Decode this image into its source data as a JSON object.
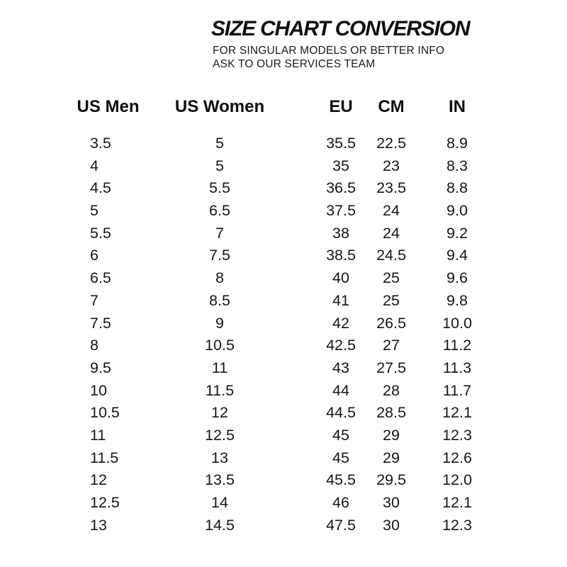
{
  "page": {
    "background_color": "#ffffff",
    "text_color": "#141414"
  },
  "header": {
    "title": "SIZE CHART CONVERSION",
    "subtitle_line1": "FOR SINGULAR MODELS OR BETTER INFO",
    "subtitle_line2": "ASK TO OUR SERVICES TEAM"
  },
  "table": {
    "headers": [
      "US Men",
      "US Women",
      "EU",
      "CM",
      "IN"
    ],
    "rows": [
      [
        "3.5",
        "5",
        "35.5",
        "22.5",
        "8.9"
      ],
      [
        "4",
        "5",
        "35",
        "23",
        "8.3"
      ],
      [
        "4.5",
        "5.5",
        "36.5",
        "23.5",
        "8.8"
      ],
      [
        "5",
        "6.5",
        "37.5",
        "24",
        "9.0"
      ],
      [
        "5.5",
        "7",
        "38",
        "24",
        "9.2"
      ],
      [
        "6",
        "7.5",
        "38.5",
        "24.5",
        "9.4"
      ],
      [
        "6.5",
        "8",
        "40",
        "25",
        "9.6"
      ],
      [
        "7",
        "8.5",
        "41",
        "25",
        "9.8"
      ],
      [
        "7.5",
        "9",
        "42",
        "26.5",
        "10.0"
      ],
      [
        "8",
        "10.5",
        "42.5",
        "27",
        "11.2"
      ],
      [
        "9.5",
        "11",
        "43",
        "27.5",
        "11.3"
      ],
      [
        "10",
        "11.5",
        "44",
        "28",
        "11.7"
      ],
      [
        "10.5",
        "12",
        "44.5",
        "28.5",
        "12.1"
      ],
      [
        "11",
        "12.5",
        "45",
        "29",
        "12.3"
      ],
      [
        "11.5",
        "13",
        "45",
        "29",
        "12.6"
      ],
      [
        "12",
        "13.5",
        "45.5",
        "29.5",
        "12.0"
      ],
      [
        "12.5",
        "14",
        "46",
        "30",
        "12.1"
      ],
      [
        "13",
        "14.5",
        "47.5",
        "30",
        "12.3"
      ]
    ]
  }
}
